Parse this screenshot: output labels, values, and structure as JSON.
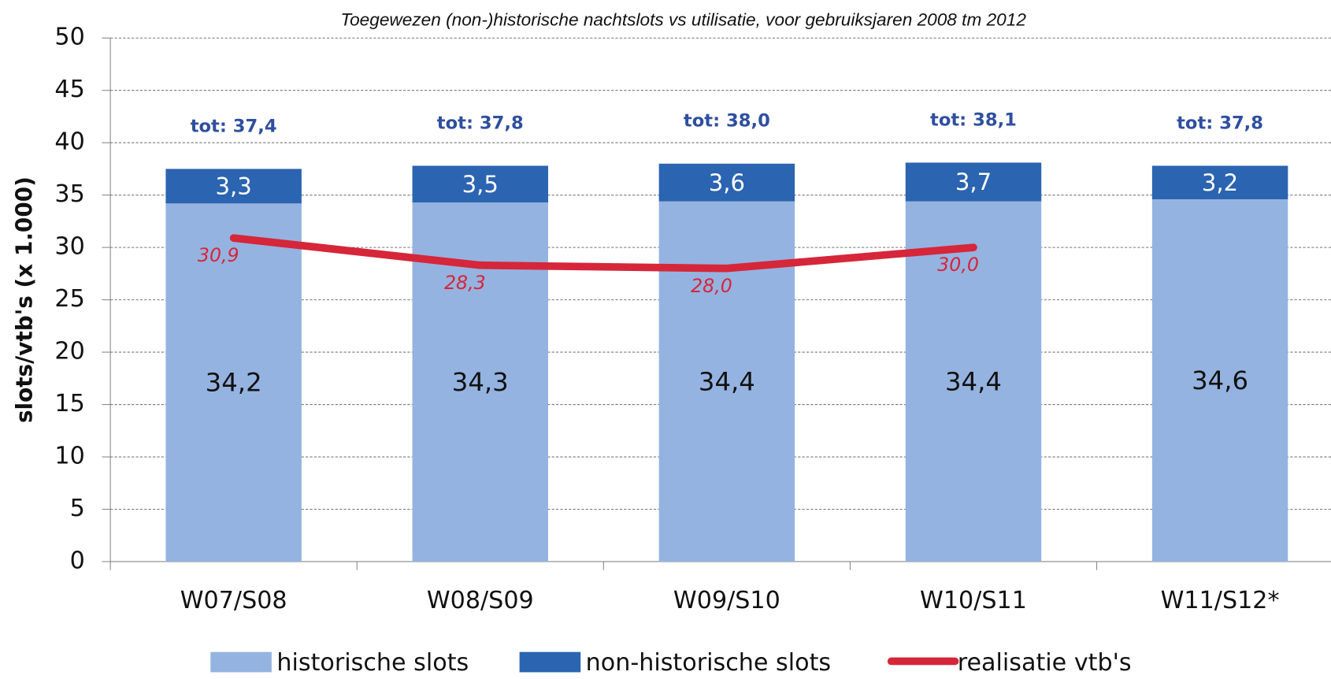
{
  "chart_data": {
    "type": "bar",
    "stacked": true,
    "title": "Toegewezen (non-)historische nachtslots vs utilisatie, voor gebruiksjaren 2008 tm 2012",
    "y_label": "slots/vtb's (x 1.000)",
    "categories": [
      "W07/S08",
      "W08/S09",
      "W09/S10",
      "W10/S11",
      "W11/S12*"
    ],
    "series": [
      {
        "name": "historische slots",
        "color": "#95b3e0",
        "values": [
          34.2,
          34.3,
          34.4,
          34.4,
          34.6
        ],
        "value_labels": [
          "34,2",
          "34,3",
          "34,4",
          "34,4",
          "34,6"
        ]
      },
      {
        "name": "non-historische slots",
        "color": "#2b64b0",
        "values": [
          3.3,
          3.5,
          3.6,
          3.7,
          3.2
        ],
        "value_labels": [
          "3,3",
          "3,5",
          "3,6",
          "3,7",
          "3,2"
        ]
      },
      {
        "name": "realisatie vtb's",
        "type": "line",
        "color": "#d6263a",
        "values": [
          30.9,
          28.3,
          28.0,
          30.0,
          null
        ],
        "value_labels": [
          "30,9",
          "28,3",
          "28,0",
          "30,0",
          null
        ]
      }
    ],
    "total_labels": [
      "tot: 37,4",
      "tot: 37,8",
      "tot: 38,0",
      "tot: 38,1",
      "tot: 37,8"
    ],
    "ylim": [
      0,
      50
    ],
    "yticks": [
      0,
      5,
      10,
      15,
      20,
      25,
      30,
      35,
      40,
      45,
      50
    ],
    "grid": true
  }
}
